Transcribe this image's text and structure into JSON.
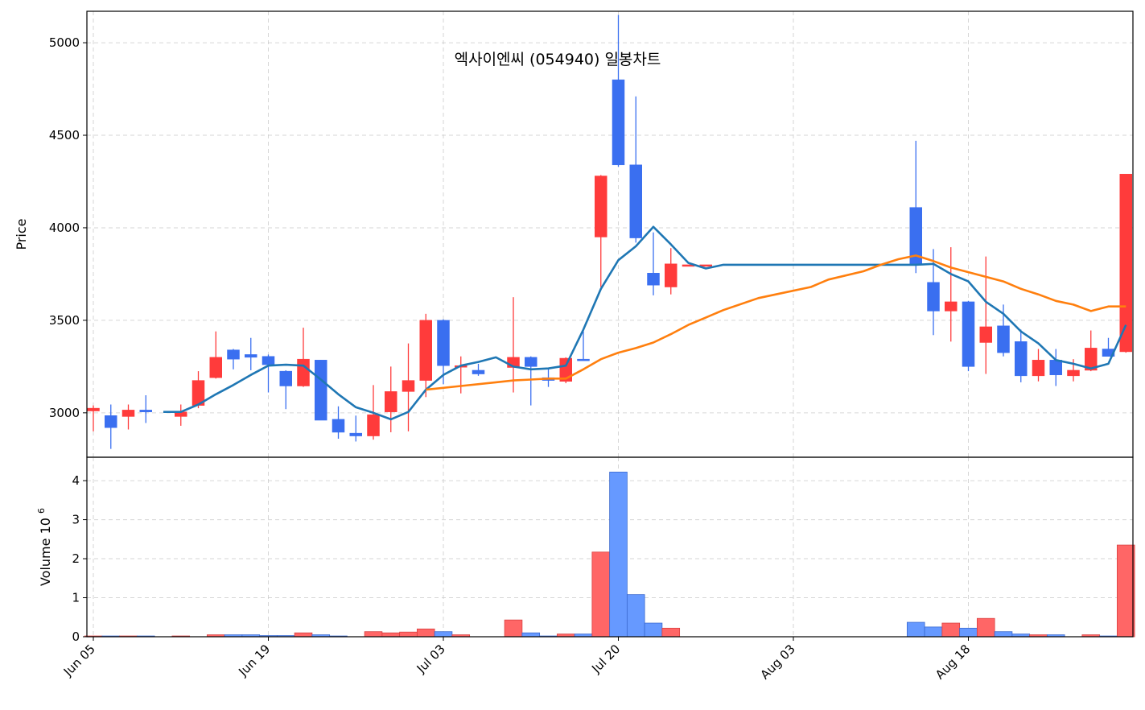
{
  "chart_data": {
    "type": "candlestick",
    "title": "엑사이엔씨 (054940) 일봉차트",
    "colors": {
      "up": "#ff3b3b",
      "down": "#3a6ff0",
      "up_volume": "#ff6666",
      "down_volume": "#6699ff",
      "ma_short": "#1f77b4",
      "ma_long": "#ff7f0e"
    },
    "price_axis": {
      "label": "Price",
      "ylim": [
        2760,
        5170
      ],
      "ticks": [
        3000,
        3500,
        4000,
        4500,
        5000
      ]
    },
    "volume_axis": {
      "label": "Volume",
      "exponent": "6",
      "ylim": [
        0,
        4.6
      ],
      "ticks": [
        0,
        1,
        2,
        3,
        4
      ]
    },
    "x_ticks": [
      {
        "label": "Jun 05",
        "index": 0
      },
      {
        "label": "Jun 19",
        "index": 10
      },
      {
        "label": "Jul 03",
        "index": 20
      },
      {
        "label": "Jul 20",
        "index": 30
      },
      {
        "label": "Aug 03",
        "index": 40
      },
      {
        "label": "Aug 18",
        "index": 50
      }
    ],
    "grid": true,
    "candles": [
      {
        "o": 3010,
        "h": 3040,
        "l": 2900,
        "c": 3025
      },
      {
        "o": 2985,
        "h": 3045,
        "l": 2805,
        "c": 2920
      },
      {
        "o": 2980,
        "h": 3045,
        "l": 2910,
        "c": 3015
      },
      {
        "o": 3015,
        "h": 3095,
        "l": 2945,
        "c": 3005
      },
      null,
      {
        "o": 2980,
        "h": 3045,
        "l": 2930,
        "c": 3005
      },
      {
        "o": 3040,
        "h": 3225,
        "l": 3025,
        "c": 3175
      },
      {
        "o": 3190,
        "h": 3440,
        "l": 3185,
        "c": 3300
      },
      {
        "o": 3340,
        "h": 3345,
        "l": 3235,
        "c": 3290
      },
      {
        "o": 3315,
        "h": 3405,
        "l": 3230,
        "c": 3300
      },
      {
        "o": 3305,
        "h": 3315,
        "l": 3110,
        "c": 3260
      },
      {
        "o": 3225,
        "h": 3230,
        "l": 3020,
        "c": 3145
      },
      {
        "o": 3145,
        "h": 3460,
        "l": 3140,
        "c": 3290
      },
      {
        "o": 3285,
        "h": 3285,
        "l": 2960,
        "c": 2960
      },
      {
        "o": 2965,
        "h": 3035,
        "l": 2860,
        "c": 2895
      },
      {
        "o": 2890,
        "h": 2985,
        "l": 2845,
        "c": 2875
      },
      {
        "o": 2875,
        "h": 3150,
        "l": 2855,
        "c": 2990
      },
      {
        "o": 3005,
        "h": 3250,
        "l": 2895,
        "c": 3115
      },
      {
        "o": 3115,
        "h": 3375,
        "l": 2900,
        "c": 3175
      },
      {
        "o": 3175,
        "h": 3535,
        "l": 3085,
        "c": 3500
      },
      {
        "o": 3500,
        "h": 3505,
        "l": 3155,
        "c": 3255
      },
      {
        "o": 3250,
        "h": 3305,
        "l": 3105,
        "c": 3255
      },
      {
        "o": 3230,
        "h": 3265,
        "l": 3200,
        "c": 3210
      },
      null,
      {
        "o": 3245,
        "h": 3625,
        "l": 3110,
        "c": 3300
      },
      {
        "o": 3300,
        "h": 3305,
        "l": 3040,
        "c": 3250
      },
      {
        "o": 3190,
        "h": 3245,
        "l": 3140,
        "c": 3175
      },
      {
        "o": 3170,
        "h": 3300,
        "l": 3160,
        "c": 3295
      },
      {
        "o": 3290,
        "h": 3440,
        "l": 3285,
        "c": 3285
      },
      {
        "o": 3950,
        "h": 4285,
        "l": 3680,
        "c": 4280
      },
      {
        "o": 4800,
        "h": 5150,
        "l": 4330,
        "c": 4340
      },
      {
        "o": 4340,
        "h": 4710,
        "l": 3920,
        "c": 3945
      },
      {
        "o": 3755,
        "h": 3975,
        "l": 3635,
        "c": 3690
      },
      {
        "o": 3680,
        "h": 3890,
        "l": 3640,
        "c": 3805
      },
      {
        "o": 3800,
        "h": 3800,
        "l": 3800,
        "c": 3800
      },
      {
        "o": 3800,
        "h": 3800,
        "l": 3800,
        "c": 3800
      },
      {
        "o": 4110,
        "h": 4470,
        "l": 3755,
        "c": 3805
      },
      {
        "o": 3705,
        "h": 3885,
        "l": 3420,
        "c": 3550
      },
      {
        "o": 3550,
        "h": 3895,
        "l": 3385,
        "c": 3600
      },
      {
        "o": 3600,
        "h": 3605,
        "l": 3225,
        "c": 3250
      },
      {
        "o": 3380,
        "h": 3845,
        "l": 3210,
        "c": 3465
      },
      {
        "o": 3470,
        "h": 3585,
        "l": 3305,
        "c": 3325
      },
      {
        "o": 3385,
        "h": 3450,
        "l": 3165,
        "c": 3200
      },
      {
        "o": 3200,
        "h": 3345,
        "l": 3170,
        "c": 3285
      },
      {
        "o": 3285,
        "h": 3345,
        "l": 3145,
        "c": 3205
      },
      {
        "o": 3200,
        "h": 3290,
        "l": 3170,
        "c": 3230
      },
      {
        "o": 3230,
        "h": 3445,
        "l": 3225,
        "c": 3350
      },
      {
        "o": 3345,
        "h": 3405,
        "l": 3305,
        "c": 3305
      },
      {
        "o": 3330,
        "h": 4290,
        "l": 3325,
        "c": 4290
      }
    ],
    "candle_x": [
      0,
      1,
      2,
      3,
      4,
      5,
      6,
      7,
      8,
      9,
      10,
      11,
      12,
      13,
      14,
      15,
      16,
      17,
      18,
      19,
      20,
      21,
      22,
      23,
      24,
      25,
      26,
      27,
      28,
      29,
      30,
      31,
      32,
      33,
      34,
      35,
      47,
      48,
      49,
      50,
      51,
      52,
      53,
      54,
      55,
      56,
      57,
      58,
      59
    ],
    "volume": [
      0.02,
      0.02,
      0.02,
      0.02,
      0,
      0.02,
      0,
      0.05,
      0.05,
      0.05,
      0.03,
      0.03,
      0.1,
      0.05,
      0.02,
      0,
      0.13,
      0.1,
      0.12,
      0.2,
      0.13,
      0.05,
      0,
      0,
      0.43,
      0.1,
      0.02,
      0.07,
      0.07,
      2.17,
      4.22,
      1.08,
      0.35,
      0.22,
      0,
      0,
      0.37,
      0.25,
      0.35,
      0.22,
      0.47,
      0.13,
      0.07,
      0.05,
      0.05,
      0,
      0.05,
      0.02,
      2.35
    ],
    "series": [
      {
        "name": "",
        "color": "#1f77b4",
        "points": [
          [
            4,
            3005
          ],
          [
            5,
            3005
          ],
          [
            6,
            3045
          ],
          [
            7,
            3100
          ],
          [
            8,
            3150
          ],
          [
            9,
            3205
          ],
          [
            10,
            3255
          ],
          [
            11,
            3260
          ],
          [
            12,
            3255
          ],
          [
            13,
            3180
          ],
          [
            14,
            3100
          ],
          [
            15,
            3030
          ],
          [
            16,
            3000
          ],
          [
            17,
            2965
          ],
          [
            18,
            3005
          ],
          [
            19,
            3125
          ],
          [
            20,
            3205
          ],
          [
            21,
            3255
          ],
          [
            22,
            3275
          ],
          [
            23,
            3300
          ],
          [
            24,
            3250
          ],
          [
            25,
            3235
          ],
          [
            26,
            3240
          ],
          [
            27,
            3255
          ],
          [
            28,
            3450
          ],
          [
            29,
            3670
          ],
          [
            30,
            3825
          ],
          [
            31,
            3900
          ],
          [
            32,
            4005
          ],
          [
            33,
            3910
          ],
          [
            34,
            3810
          ],
          [
            35,
            3780
          ],
          [
            36,
            3800
          ],
          [
            47,
            3800
          ],
          [
            48,
            3805
          ],
          [
            49,
            3750
          ],
          [
            50,
            3710
          ],
          [
            51,
            3600
          ],
          [
            52,
            3535
          ],
          [
            53,
            3440
          ],
          [
            54,
            3375
          ],
          [
            55,
            3285
          ],
          [
            56,
            3265
          ],
          [
            57,
            3240
          ],
          [
            58,
            3265
          ],
          [
            59,
            3475
          ]
        ]
      },
      {
        "name": "",
        "color": "#ff7f0e",
        "points": [
          [
            19,
            3125
          ],
          [
            21,
            3145
          ],
          [
            23,
            3165
          ],
          [
            24,
            3175
          ],
          [
            25,
            3180
          ],
          [
            26,
            3185
          ],
          [
            27,
            3185
          ],
          [
            28,
            3235
          ],
          [
            29,
            3290
          ],
          [
            30,
            3325
          ],
          [
            31,
            3350
          ],
          [
            32,
            3380
          ],
          [
            33,
            3425
          ],
          [
            34,
            3475
          ],
          [
            35,
            3515
          ],
          [
            36,
            3555
          ],
          [
            38,
            3620
          ],
          [
            39,
            3640
          ],
          [
            41,
            3680
          ],
          [
            42,
            3720
          ],
          [
            44,
            3765
          ],
          [
            45,
            3800
          ],
          [
            46,
            3830
          ],
          [
            47,
            3850
          ],
          [
            48,
            3820
          ],
          [
            49,
            3785
          ],
          [
            50,
            3760
          ],
          [
            51,
            3735
          ],
          [
            52,
            3710
          ],
          [
            53,
            3670
          ],
          [
            54,
            3640
          ],
          [
            55,
            3605
          ],
          [
            56,
            3585
          ],
          [
            57,
            3550
          ],
          [
            58,
            3575
          ],
          [
            59,
            3575
          ]
        ]
      }
    ]
  }
}
